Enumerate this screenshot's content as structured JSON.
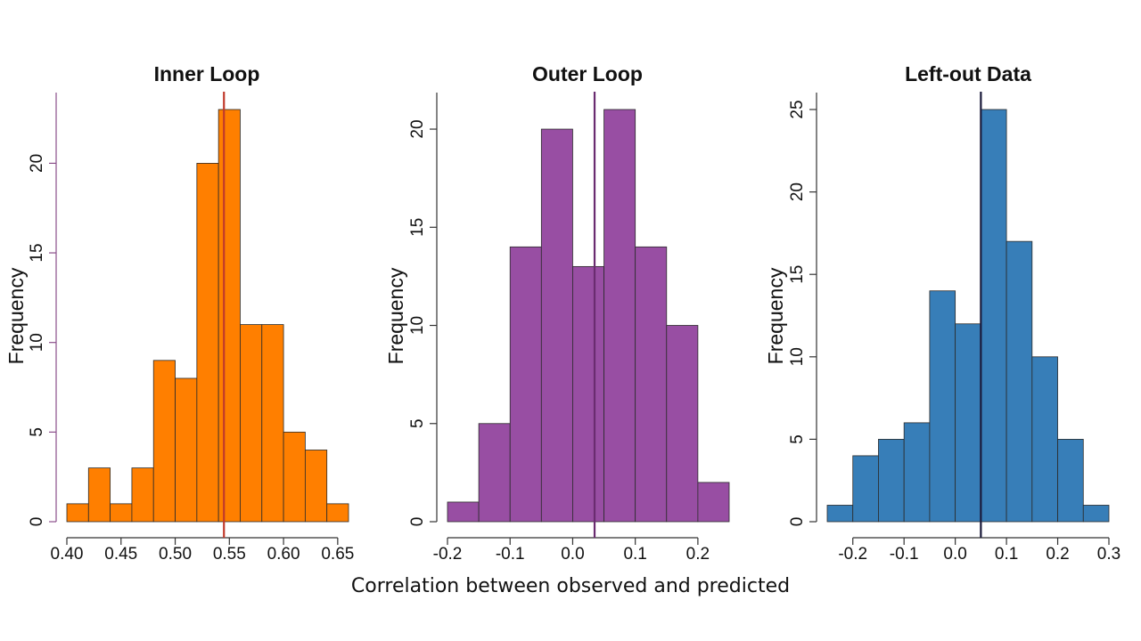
{
  "shared_xlabel": "Correlation between observed and predicted",
  "chart_data": [
    {
      "type": "bar",
      "title": "Inner Loop",
      "ylabel": "Frequency",
      "xlabel": "",
      "bin_edges": [
        0.4,
        0.42,
        0.44,
        0.46,
        0.48,
        0.5,
        0.52,
        0.54,
        0.56,
        0.58,
        0.6,
        0.62,
        0.64,
        0.66
      ],
      "values": [
        1,
        3,
        1,
        3,
        9,
        8,
        20,
        23,
        11,
        11,
        5,
        4,
        1
      ],
      "xticks": [
        0.4,
        0.45,
        0.5,
        0.55,
        0.6,
        0.65
      ],
      "xtick_labels": [
        "0.40",
        "0.45",
        "0.50",
        "0.55",
        "0.60",
        "0.65"
      ],
      "yticks": [
        0,
        5,
        10,
        15,
        20
      ],
      "ytick_labels": [
        "0",
        "5",
        "10",
        "15",
        "20"
      ],
      "xlim": [
        0.4,
        0.66
      ],
      "ylim": [
        0,
        23
      ],
      "vline": 0.545,
      "bar_color": "#ff7f00",
      "vline_color": "#c0392b",
      "axis_color": "#8b4f8b"
    },
    {
      "type": "bar",
      "title": "Outer Loop",
      "ylabel": "Frequency",
      "xlabel": "",
      "bin_edges": [
        -0.2,
        -0.15,
        -0.1,
        -0.05,
        0.0,
        0.05,
        0.1,
        0.15,
        0.2,
        0.25
      ],
      "values": [
        1,
        5,
        14,
        20,
        13,
        21,
        14,
        10,
        2
      ],
      "xticks": [
        -0.2,
        -0.1,
        0.0,
        0.1,
        0.2
      ],
      "xtick_labels": [
        "-0.2",
        "-0.1",
        "0.0",
        "0.1",
        "0.2"
      ],
      "yticks": [
        0,
        5,
        10,
        15,
        20
      ],
      "ytick_labels": [
        "0",
        "5",
        "10",
        "15",
        "20"
      ],
      "xlim": [
        -0.2,
        0.25
      ],
      "ylim": [
        0,
        21
      ],
      "vline": 0.035,
      "bar_color": "#984ea3",
      "vline_color": "#6a2c70",
      "axis_color": "#333333"
    },
    {
      "type": "bar",
      "title": "Left-out Data",
      "ylabel": "Frequency",
      "xlabel": "",
      "bin_edges": [
        -0.25,
        -0.2,
        -0.15,
        -0.1,
        -0.05,
        0.0,
        0.05,
        0.1,
        0.15,
        0.2,
        0.25,
        0.3
      ],
      "values": [
        1,
        4,
        5,
        6,
        14,
        12,
        25,
        17,
        10,
        5,
        1
      ],
      "xticks": [
        -0.2,
        -0.1,
        0.0,
        0.1,
        0.2,
        0.3
      ],
      "xtick_labels": [
        "-0.2",
        "-0.1",
        "0.0",
        "0.1",
        "0.2",
        "0.3"
      ],
      "yticks": [
        0,
        5,
        10,
        15,
        20,
        25
      ],
      "ytick_labels": [
        "0",
        "5",
        "10",
        "15",
        "20",
        "25"
      ],
      "xlim": [
        -0.25,
        0.3
      ],
      "ylim": [
        0,
        25
      ],
      "vline": 0.05,
      "bar_color": "#377eb8",
      "vline_color": "#1a1a3a",
      "axis_color": "#333333"
    }
  ]
}
